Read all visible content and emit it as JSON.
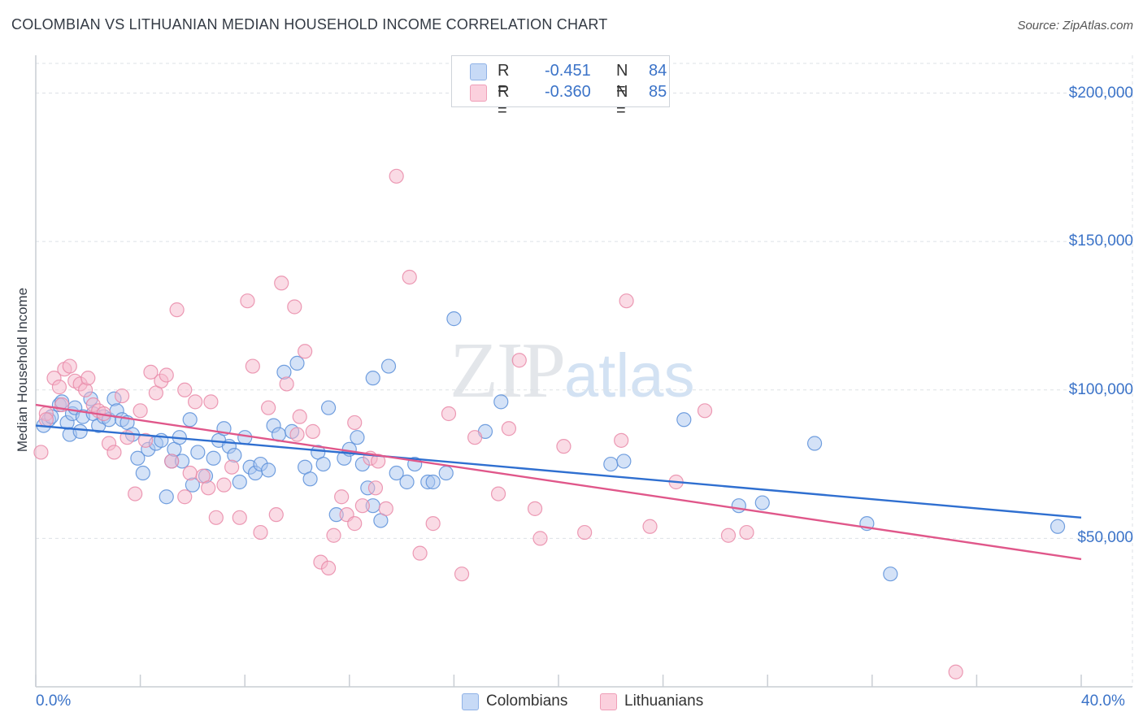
{
  "header": {
    "title": "COLOMBIAN VS LITHUANIAN MEDIAN HOUSEHOLD INCOME CORRELATION CHART",
    "source": "Source: ZipAtlas.com"
  },
  "watermark": {
    "zip": "ZIP",
    "atlas": "atlas"
  },
  "legend": {
    "rows": [
      {
        "r_label": "R =",
        "r_value": "-0.451",
        "n_label": "N =",
        "n_value": "84",
        "color": "#a9c6f0"
      },
      {
        "r_label": "R =",
        "r_value": "-0.360",
        "n_label": "N =",
        "n_value": "85",
        "color": "#f6b8cb"
      }
    ]
  },
  "bottom_legend": [
    {
      "label": "Colombians",
      "color": "#a9c6f0"
    },
    {
      "label": "Lithuanians",
      "color": "#f6b8cb"
    }
  ],
  "chart_data": {
    "type": "scatter",
    "title": "COLOMBIAN VS LITHUANIAN MEDIAN HOUSEHOLD INCOME CORRELATION CHART",
    "xlabel": "",
    "ylabel": "Median Household Income",
    "xlim": [
      0,
      40
    ],
    "ylim": [
      0,
      210000
    ],
    "x_tick_labels": [
      "0.0%",
      "40.0%"
    ],
    "y_ticks": [
      {
        "value": 50000,
        "label": "$50,000"
      },
      {
        "value": 100000,
        "label": "$100,000"
      },
      {
        "value": 150000,
        "label": "$150,000"
      },
      {
        "value": 200000,
        "label": "$200,000"
      }
    ],
    "grid": true,
    "legend_position": "top-center",
    "series": [
      {
        "name": "Colombians",
        "color": "#5b8fd9",
        "fill": "#a9c6f0",
        "trend": {
          "x": [
            0,
            40
          ],
          "y": [
            88000,
            57000
          ],
          "color": "#2f6fd0"
        },
        "points": [
          [
            0.3,
            88000
          ],
          [
            0.5,
            90000
          ],
          [
            0.6,
            91000
          ],
          [
            0.9,
            95000
          ],
          [
            1.0,
            96000
          ],
          [
            1.2,
            89000
          ],
          [
            1.3,
            85000
          ],
          [
            1.4,
            92000
          ],
          [
            1.5,
            94000
          ],
          [
            1.7,
            86000
          ],
          [
            1.8,
            91000
          ],
          [
            2.1,
            97000
          ],
          [
            2.2,
            92000
          ],
          [
            2.4,
            88000
          ],
          [
            2.6,
            91000
          ],
          [
            2.8,
            90000
          ],
          [
            3.0,
            97000
          ],
          [
            3.1,
            93000
          ],
          [
            3.3,
            90000
          ],
          [
            3.5,
            89000
          ],
          [
            3.7,
            85000
          ],
          [
            3.9,
            77000
          ],
          [
            4.1,
            72000
          ],
          [
            4.3,
            80000
          ],
          [
            4.6,
            82000
          ],
          [
            4.8,
            83000
          ],
          [
            5.0,
            64000
          ],
          [
            5.2,
            76000
          ],
          [
            5.3,
            80000
          ],
          [
            5.5,
            84000
          ],
          [
            5.6,
            76000
          ],
          [
            5.9,
            90000
          ],
          [
            6.0,
            68000
          ],
          [
            6.2,
            79000
          ],
          [
            6.5,
            71000
          ],
          [
            6.8,
            77000
          ],
          [
            7.0,
            83000
          ],
          [
            7.2,
            87000
          ],
          [
            7.4,
            81000
          ],
          [
            7.6,
            78000
          ],
          [
            7.8,
            69000
          ],
          [
            8.0,
            84000
          ],
          [
            8.2,
            74000
          ],
          [
            8.4,
            72000
          ],
          [
            8.6,
            75000
          ],
          [
            8.9,
            73000
          ],
          [
            9.1,
            88000
          ],
          [
            9.3,
            85000
          ],
          [
            9.5,
            106000
          ],
          [
            9.8,
            86000
          ],
          [
            10.0,
            109000
          ],
          [
            10.3,
            74000
          ],
          [
            10.5,
            70000
          ],
          [
            10.8,
            79000
          ],
          [
            11.0,
            75000
          ],
          [
            11.2,
            94000
          ],
          [
            11.5,
            58000
          ],
          [
            11.8,
            77000
          ],
          [
            12.0,
            80000
          ],
          [
            12.3,
            84000
          ],
          [
            12.5,
            75000
          ],
          [
            12.7,
            67000
          ],
          [
            12.9,
            104000
          ],
          [
            13.2,
            56000
          ],
          [
            13.5,
            108000
          ],
          [
            13.8,
            72000
          ],
          [
            14.2,
            69000
          ],
          [
            14.5,
            75000
          ],
          [
            15.0,
            69000
          ],
          [
            15.2,
            69000
          ],
          [
            15.7,
            72000
          ],
          [
            16.0,
            124000
          ],
          [
            17.2,
            86000
          ],
          [
            17.8,
            96000
          ],
          [
            22.0,
            75000
          ],
          [
            22.5,
            76000
          ],
          [
            24.8,
            90000
          ],
          [
            26.9,
            61000
          ],
          [
            27.8,
            62000
          ],
          [
            29.8,
            82000
          ],
          [
            31.8,
            55000
          ],
          [
            32.7,
            38000
          ],
          [
            39.1,
            54000
          ],
          [
            12.9,
            61000
          ]
        ]
      },
      {
        "name": "Lithuanians",
        "color": "#e98aa8",
        "fill": "#f6b8cb",
        "trend": {
          "x": [
            0,
            40
          ],
          "y": [
            95000,
            43000
          ],
          "color": "#e0578a"
        },
        "points": [
          [
            0.2,
            79000
          ],
          [
            0.4,
            92000
          ],
          [
            0.7,
            104000
          ],
          [
            0.9,
            101000
          ],
          [
            1.1,
            107000
          ],
          [
            1.3,
            108000
          ],
          [
            1.5,
            103000
          ],
          [
            1.7,
            102000
          ],
          [
            1.9,
            100000
          ],
          [
            2.0,
            104000
          ],
          [
            2.2,
            95000
          ],
          [
            2.4,
            93000
          ],
          [
            2.6,
            92000
          ],
          [
            2.8,
            82000
          ],
          [
            3.0,
            79000
          ],
          [
            3.3,
            98000
          ],
          [
            3.5,
            84000
          ],
          [
            3.8,
            65000
          ],
          [
            4.0,
            93000
          ],
          [
            4.2,
            83000
          ],
          [
            4.4,
            106000
          ],
          [
            4.6,
            99000
          ],
          [
            4.8,
            103000
          ],
          [
            5.0,
            105000
          ],
          [
            5.2,
            76000
          ],
          [
            5.4,
            127000
          ],
          [
            5.7,
            100000
          ],
          [
            5.9,
            72000
          ],
          [
            6.1,
            96000
          ],
          [
            6.4,
            71000
          ],
          [
            6.6,
            67000
          ],
          [
            6.9,
            57000
          ],
          [
            7.2,
            68000
          ],
          [
            7.5,
            74000
          ],
          [
            7.8,
            57000
          ],
          [
            8.1,
            130000
          ],
          [
            8.3,
            108000
          ],
          [
            8.6,
            52000
          ],
          [
            8.9,
            94000
          ],
          [
            9.2,
            58000
          ],
          [
            9.4,
            136000
          ],
          [
            9.6,
            102000
          ],
          [
            9.9,
            128000
          ],
          [
            10.1,
            91000
          ],
          [
            10.3,
            113000
          ],
          [
            10.6,
            86000
          ],
          [
            10.9,
            42000
          ],
          [
            11.2,
            40000
          ],
          [
            11.4,
            51000
          ],
          [
            11.7,
            64000
          ],
          [
            11.9,
            58000
          ],
          [
            12.2,
            55000
          ],
          [
            12.5,
            61000
          ],
          [
            12.8,
            77000
          ],
          [
            13.1,
            76000
          ],
          [
            13.4,
            60000
          ],
          [
            13.8,
            172000
          ],
          [
            14.3,
            138000
          ],
          [
            14.7,
            45000
          ],
          [
            15.2,
            55000
          ],
          [
            15.8,
            92000
          ],
          [
            16.3,
            38000
          ],
          [
            16.8,
            84000
          ],
          [
            17.7,
            65000
          ],
          [
            18.1,
            87000
          ],
          [
            18.5,
            110000
          ],
          [
            19.1,
            60000
          ],
          [
            19.3,
            50000
          ],
          [
            20.2,
            81000
          ],
          [
            21.0,
            52000
          ],
          [
            22.4,
            83000
          ],
          [
            22.6,
            130000
          ],
          [
            23.5,
            54000
          ],
          [
            24.5,
            69000
          ],
          [
            25.6,
            93000
          ],
          [
            26.5,
            51000
          ],
          [
            27.2,
            52000
          ],
          [
            35.2,
            5000
          ],
          [
            0.4,
            90000
          ],
          [
            1.0,
            95000
          ],
          [
            6.7,
            96000
          ],
          [
            13.0,
            67000
          ],
          [
            5.7,
            64000
          ],
          [
            10.0,
            85000
          ],
          [
            12.2,
            89000
          ]
        ]
      }
    ]
  }
}
